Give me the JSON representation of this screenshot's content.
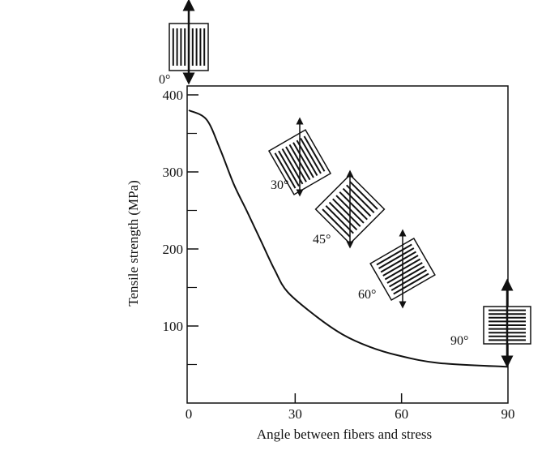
{
  "chart_data": {
    "type": "line",
    "title": "",
    "xlabel": "Angle between fibers and stress",
    "ylabel": "Tensile strength (MPa)",
    "xlim": [
      0,
      90
    ],
    "ylim": [
      0,
      410
    ],
    "x_ticks": [
      0,
      30,
      60,
      90
    ],
    "y_ticks": [
      100,
      200,
      300,
      400
    ],
    "grid": false,
    "series": [
      {
        "x": [
          0,
          5,
          8.8,
          12.7,
          16.4,
          20.3,
          24.2,
          27.9,
          35.8,
          43.4,
          51,
          58.9,
          70.4,
          90
        ],
        "y": [
          380,
          368,
          330,
          284,
          249,
          211,
          173,
          144,
          113,
          89,
          73,
          62,
          52,
          47
        ]
      }
    ],
    "annotations": [
      {
        "label": "0°",
        "angle": 0
      },
      {
        "label": "30°",
        "angle": 30
      },
      {
        "label": "45°",
        "angle": 45
      },
      {
        "label": "60°",
        "angle": 60
      },
      {
        "label": "90°",
        "angle": 90
      }
    ]
  }
}
